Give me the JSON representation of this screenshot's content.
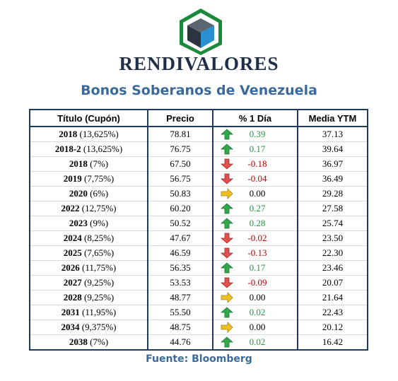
{
  "brand": "RENDIVALORES",
  "title": "Bonos Soberanos de Venezuela",
  "source": "Fuente: Bloomberg",
  "colors": {
    "positive": "#1e9e3e",
    "negative": "#c00000",
    "neutral_arrow": "#f0c020",
    "border": "#1f3a5f",
    "title": "#3a6a9c"
  },
  "table": {
    "headers": [
      "Título (Cupón)",
      "Precio",
      "% 1 Día",
      "Media YTM"
    ],
    "rows": [
      {
        "year": "2018",
        "coupon": "(13,625%)",
        "price": "78.81",
        "change": "0.39",
        "trend": "up",
        "ytm": "37.13"
      },
      {
        "year": "2018-2",
        "coupon": "(13,625%)",
        "price": "76.75",
        "change": "0.17",
        "trend": "up",
        "ytm": "39.64"
      },
      {
        "year": "2018",
        "coupon": "(7%)",
        "price": "67.50",
        "change": "-0.18",
        "trend": "down",
        "ytm": "36.97"
      },
      {
        "year": "2019",
        "coupon": "(7,75%)",
        "price": "56.75",
        "change": "-0.04",
        "trend": "down",
        "ytm": "36.49"
      },
      {
        "year": "2020",
        "coupon": "(6%)",
        "price": "50.83",
        "change": "0.00",
        "trend": "flat",
        "ytm": "29.28"
      },
      {
        "year": "2022",
        "coupon": "(12,75%)",
        "price": "60.20",
        "change": "0.27",
        "trend": "up",
        "ytm": "27.58"
      },
      {
        "year": "2023",
        "coupon": "(9%)",
        "price": "50.52",
        "change": "0.28",
        "trend": "up",
        "ytm": "25.74"
      },
      {
        "year": "2024",
        "coupon": "(8,25%)",
        "price": "47.67",
        "change": "-0.02",
        "trend": "down",
        "ytm": "23.50"
      },
      {
        "year": "2025",
        "coupon": "(7,65%)",
        "price": "46.59",
        "change": "-0.13",
        "trend": "down",
        "ytm": "22.30"
      },
      {
        "year": "2026",
        "coupon": "(11,75%)",
        "price": "56.35",
        "change": "0.17",
        "trend": "up",
        "ytm": "23.46"
      },
      {
        "year": "2027",
        "coupon": "(9,25%)",
        "price": "53.53",
        "change": "-0.09",
        "trend": "down",
        "ytm": "20.07"
      },
      {
        "year": "2028",
        "coupon": "(9,25%)",
        "price": "48.77",
        "change": "0.00",
        "trend": "flat",
        "ytm": "21.64"
      },
      {
        "year": "2031",
        "coupon": "(11,95%)",
        "price": "55.50",
        "change": "0.02",
        "trend": "up",
        "ytm": "22.43"
      },
      {
        "year": "2034",
        "coupon": "(9,375%)",
        "price": "48.75",
        "change": "0.00",
        "trend": "flat",
        "ytm": "20.12"
      },
      {
        "year": "2038",
        "coupon": "(7%)",
        "price": "44.76",
        "change": "0.02",
        "trend": "up",
        "ytm": "16.42"
      }
    ]
  }
}
